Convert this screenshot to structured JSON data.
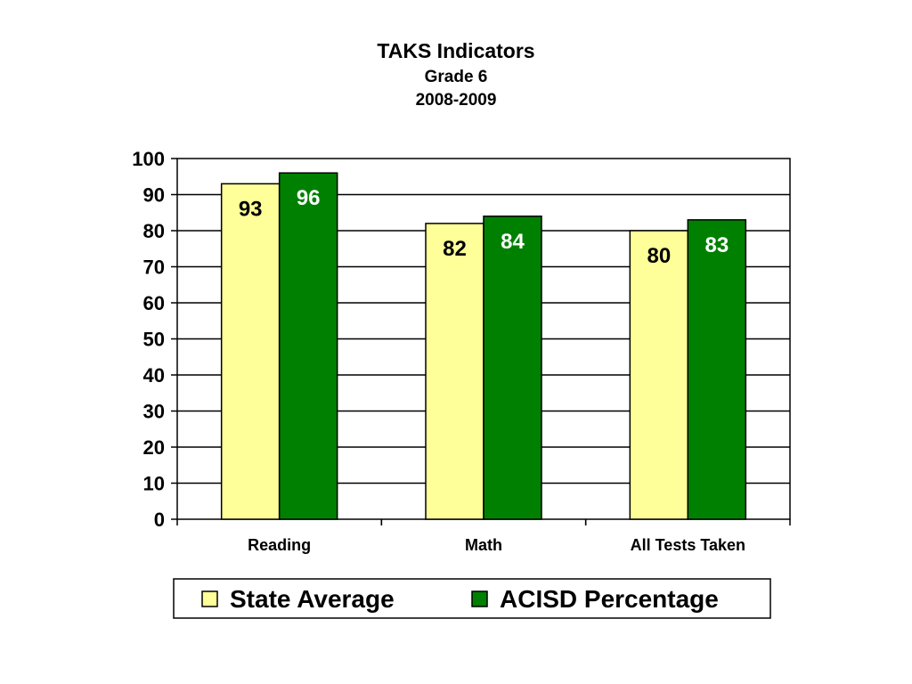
{
  "chart_data": {
    "type": "bar",
    "title": "TAKS Indicators",
    "subtitle": [
      "Grade 6",
      "2008-2009"
    ],
    "categories": [
      "Reading",
      "Math",
      "All Tests Taken"
    ],
    "series": [
      {
        "name": "State Average",
        "values": [
          93,
          82,
          80
        ],
        "color": "#FFFF99",
        "label_color": "#000000"
      },
      {
        "name": "ACISD Percentage",
        "values": [
          96,
          84,
          83
        ],
        "color": "#008000",
        "label_color": "#FFFFFF"
      }
    ],
    "ylim": [
      0,
      100
    ],
    "yticks": [
      "0",
      "10",
      "20",
      "30",
      "40",
      "50",
      "60",
      "70",
      "80",
      "90",
      "100"
    ],
    "grid": true,
    "legend_position": "bottom"
  }
}
